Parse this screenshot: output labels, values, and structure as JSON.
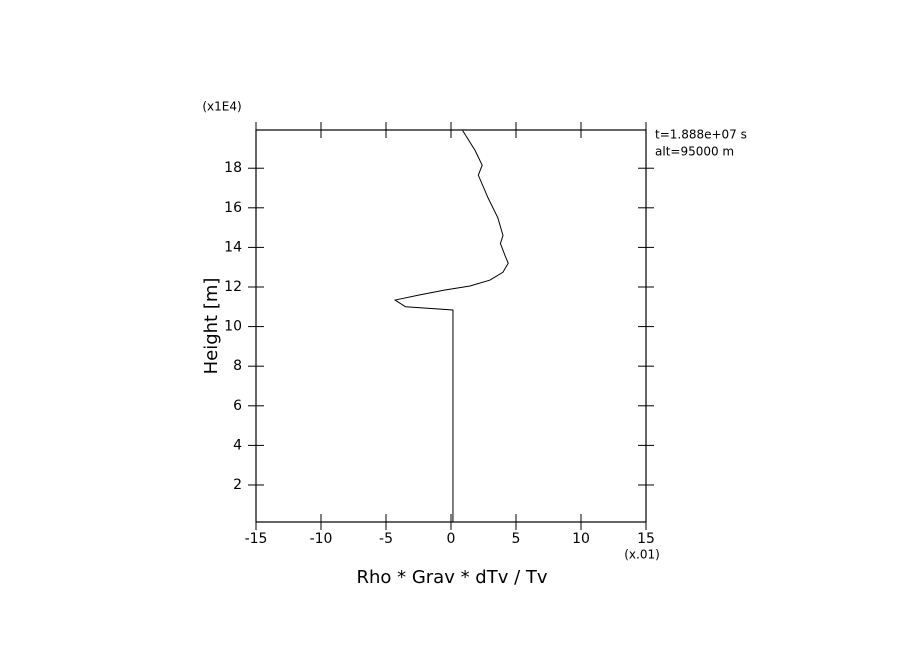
{
  "chart_data": {
    "type": "line",
    "x_label": "Rho * Grav * dTv / Tv",
    "y_label": "Height [m]",
    "x_multiplier": "(x.01)",
    "y_multiplier": "(x1E4)",
    "annotations": [
      "t=1.888e+07 s",
      "alt=95000 m"
    ],
    "color": "#000000",
    "x": [
      0.15,
      0.15,
      -3.5,
      -4.3,
      -2.4,
      -0.46,
      1.46,
      3.0,
      4.0,
      4.4,
      4.15,
      3.8,
      4.0,
      3.6,
      2.85,
      2.1,
      2.4,
      1.85,
      0.9
    ],
    "y": [
      0.13,
      10.84,
      11.0,
      11.34,
      11.6,
      11.85,
      12.05,
      12.35,
      12.75,
      13.2,
      13.6,
      14.2,
      14.6,
      15.5,
      16.5,
      17.65,
      18.15,
      18.9,
      19.9
    ],
    "xlim": [
      -15,
      15
    ],
    "ylim": [
      0.13,
      19.93
    ],
    "xticks": [
      -15,
      -10,
      -5,
      0,
      5,
      10,
      15
    ],
    "yticks": [
      2,
      4,
      6,
      8,
      10,
      12,
      14,
      16,
      18
    ]
  }
}
